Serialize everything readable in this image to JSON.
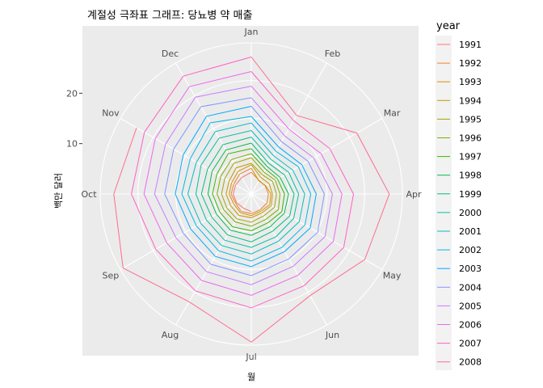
{
  "chart_data": {
    "type": "line",
    "coord": "polar",
    "title": "계절성 극좌표 그래프: 당뇨병 약 매출",
    "xlabel": "월",
    "ylabel": "백만 달러",
    "months": [
      "Jan",
      "Feb",
      "Mar",
      "Apr",
      "May",
      "Jun",
      "Jul",
      "Aug",
      "Sep",
      "Oct",
      "Nov",
      "Dec"
    ],
    "r_ticks": [
      10,
      20
    ],
    "rlim": [
      0,
      30
    ],
    "legend": {
      "title": "year",
      "position": "right"
    },
    "grid": true,
    "series": [
      {
        "name": "1991",
        "color": "#F8766D",
        "values": [
          null,
          null,
          null,
          null,
          null,
          null,
          3.5,
          3.2,
          3.4,
          3.6,
          3.6,
          3.8
        ]
      },
      {
        "name": "1992",
        "color": "#EA8331",
        "values": [
          4.3,
          3.1,
          3.2,
          3.4,
          3.6,
          3.6,
          3.9,
          4.0,
          3.6,
          4.0,
          4.0,
          4.6
        ]
      },
      {
        "name": "1993",
        "color": "#D89000",
        "values": [
          5.1,
          3.0,
          3.3,
          3.9,
          4.2,
          3.9,
          4.3,
          4.3,
          4.0,
          4.4,
          4.5,
          5.2
        ]
      },
      {
        "name": "1994",
        "color": "#C09B00",
        "values": [
          5.8,
          3.8,
          4.1,
          4.2,
          4.6,
          4.3,
          4.7,
          4.9,
          4.7,
          5.0,
          5.1,
          6.0
        ]
      },
      {
        "name": "1995",
        "color": "#A3A500",
        "values": [
          6.1,
          4.4,
          4.9,
          5.0,
          5.3,
          5.0,
          5.6,
          5.7,
          5.6,
          5.9,
          6.1,
          7.0
        ]
      },
      {
        "name": "1996",
        "color": "#7CAE00",
        "values": [
          7.2,
          5.0,
          5.5,
          5.7,
          6.2,
          5.8,
          6.4,
          6.4,
          6.3,
          6.8,
          7.0,
          7.9
        ]
      },
      {
        "name": "1997",
        "color": "#39B600",
        "values": [
          8.0,
          5.7,
          6.0,
          6.6,
          7.0,
          6.6,
          7.3,
          7.5,
          7.2,
          7.7,
          7.9,
          9.2
        ]
      },
      {
        "name": "1998",
        "color": "#00BB4E",
        "values": [
          9.0,
          6.3,
          6.6,
          7.4,
          7.6,
          7.5,
          8.2,
          8.3,
          8.0,
          8.6,
          9.0,
          10.1
        ]
      },
      {
        "name": "1999",
        "color": "#00BF7D",
        "values": [
          10.1,
          7.0,
          7.6,
          8.5,
          8.8,
          8.5,
          9.5,
          9.4,
          9.1,
          9.9,
          10.0,
          11.3
        ]
      },
      {
        "name": "2000",
        "color": "#00C1A3",
        "values": [
          11.3,
          7.9,
          8.6,
          9.4,
          9.7,
          9.8,
          10.6,
          10.6,
          10.3,
          11.0,
          11.5,
          12.8
        ]
      },
      {
        "name": "2001",
        "color": "#00BFC4",
        "values": [
          12.6,
          8.8,
          9.5,
          10.6,
          11.0,
          10.8,
          11.9,
          11.8,
          11.6,
          12.6,
          12.6,
          14.3
        ]
      },
      {
        "name": "2002",
        "color": "#00B8E7",
        "values": [
          14.1,
          9.8,
          10.8,
          11.8,
          12.3,
          12.2,
          13.3,
          13.0,
          12.6,
          13.8,
          14.0,
          16.3
        ]
      },
      {
        "name": "2003",
        "color": "#00A9FF",
        "values": [
          15.4,
          10.8,
          11.6,
          12.9,
          13.5,
          13.2,
          14.4,
          14.3,
          13.9,
          15.1,
          15.6,
          17.8
        ]
      },
      {
        "name": "2004",
        "color": "#8494FF",
        "values": [
          17.4,
          12.0,
          13.0,
          14.5,
          15.2,
          14.9,
          16.2,
          16.1,
          15.6,
          17.2,
          17.8,
          20.0
        ]
      },
      {
        "name": "2005",
        "color": "#C77CFF",
        "values": [
          19.1,
          13.3,
          14.3,
          16.1,
          16.9,
          16.6,
          18.0,
          17.8,
          17.3,
          19.2,
          19.7,
          22.2
        ]
      },
      {
        "name": "2006",
        "color": "#ED68ED",
        "values": [
          21.4,
          14.9,
          16.0,
          18.0,
          18.8,
          18.6,
          20.1,
          19.8,
          19.4,
          21.3,
          22.0,
          24.6
        ]
      },
      {
        "name": "2007",
        "color": "#FF61C3",
        "values": [
          24.3,
          16.8,
          18.0,
          20.3,
          21.2,
          21.0,
          22.6,
          22.2,
          21.9,
          23.8,
          24.5,
          27.0
        ]
      },
      {
        "name": "2008",
        "color": "#FF6C91",
        "values": [
          27.2,
          18.0,
          24.2,
          27.4,
          26.0,
          23.3,
          29.4,
          24.7,
          29.4,
          27.3,
          26.3,
          null
        ]
      }
    ]
  }
}
